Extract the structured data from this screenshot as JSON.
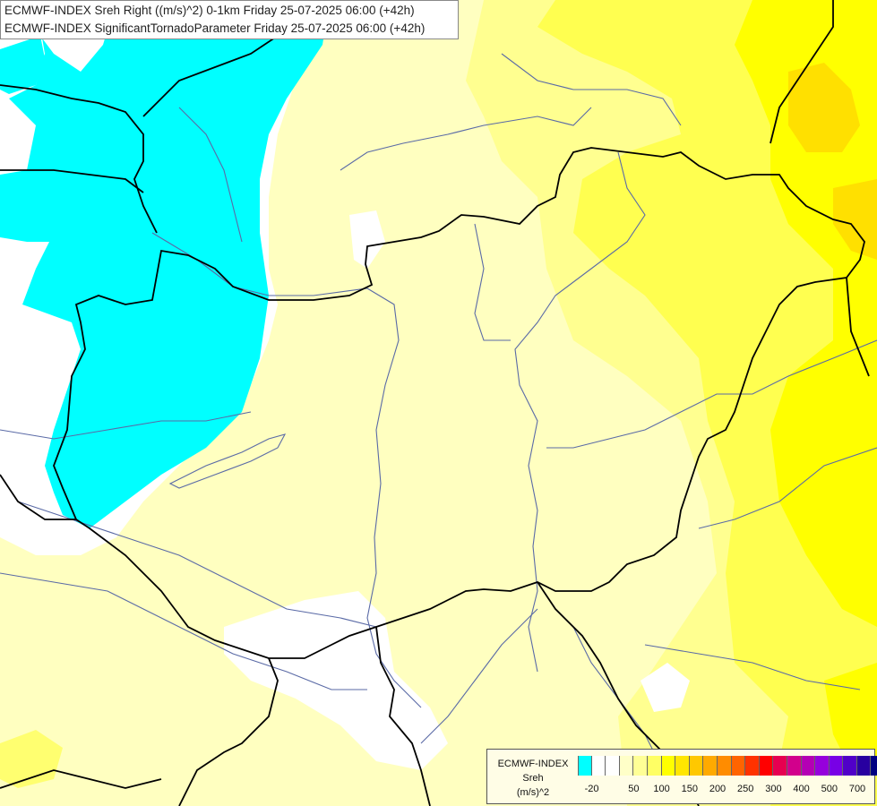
{
  "map": {
    "title_lines": [
      "ECMWF-INDEX Sreh Right ((m/s)^2) 0-1km Friday 25-07-2025 06:00 (+42h)",
      "ECMWF-INDEX SignificantTornadoParameter Friday 25-07-2025 06:00 (+42h)"
    ],
    "fill_colors": {
      "neg": "#00ffff",
      "zero": "#ffffff",
      "pale": "#ffffc0",
      "light": "#ffff90",
      "mid": "#ffff50",
      "yellow": "#ffff00",
      "gold": "#ffe000"
    },
    "border_color": "#000000",
    "river_color": "#5a6aa6"
  },
  "legend": {
    "title_lines": [
      "ECMWF-INDEX",
      "Sreh",
      "(m/s)^2"
    ],
    "colors": [
      "#00ffff",
      "#ffffff",
      "#ffffff",
      "#ffffc8",
      "#ffff96",
      "#ffff64",
      "#ffff00",
      "#ffe600",
      "#ffc800",
      "#ffaa00",
      "#ff8c00",
      "#ff6400",
      "#ff3200",
      "#ff0000",
      "#e60050",
      "#d2008c",
      "#b400b4",
      "#9600dc",
      "#7800e6",
      "#5000c8",
      "#2800a0",
      "#000080"
    ],
    "tick_labels": [
      "-20",
      "50",
      "100",
      "150",
      "200",
      "250",
      "300",
      "400",
      "500",
      "700"
    ]
  }
}
